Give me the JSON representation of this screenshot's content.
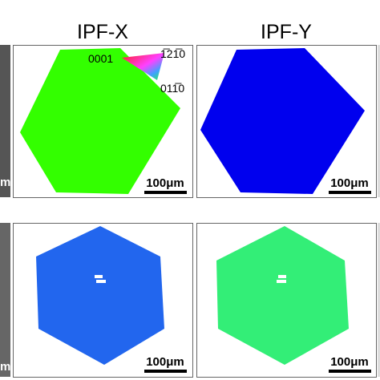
{
  "headers": [
    "IPF-X",
    "IPF-Y"
  ],
  "legend": {
    "corner_left": "0001",
    "corner_top_right": "1̅21̅0",
    "corner_bottom_right": "011̅0"
  },
  "panels": [
    {
      "scale_bar": "100μm"
    },
    {
      "scale_bar": "100μm"
    },
    {
      "scale_bar": "100μm"
    },
    {
      "scale_bar": "100μm"
    }
  ],
  "left_edge_labels": [
    "m",
    "m"
  ]
}
